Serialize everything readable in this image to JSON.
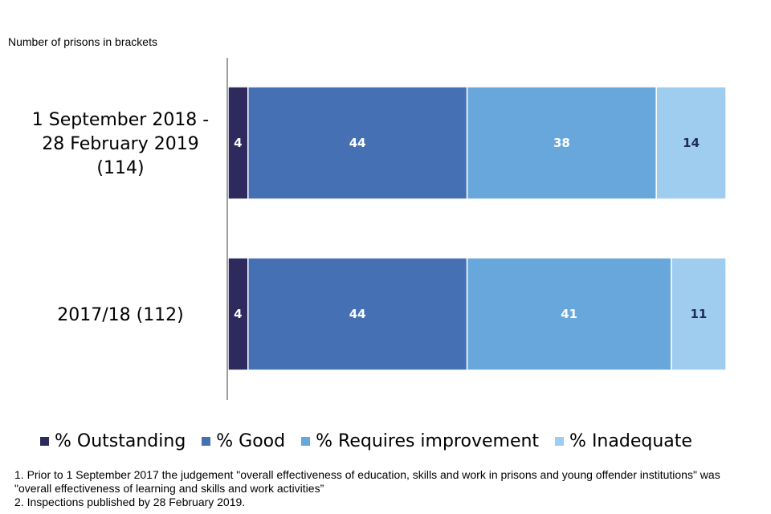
{
  "chart_data": {
    "type": "bar",
    "orientation": "horizontal",
    "stacked": true,
    "subtitle": "Number of prisons in brackets",
    "categories": [
      [
        "1 September 2018 -",
        "28 February 2019",
        "(114)"
      ],
      [
        "2017/18 (112)"
      ]
    ],
    "series": [
      {
        "name": "% Outstanding",
        "color": "#2e2a5e",
        "label_color": "#ffffff",
        "values": [
          4,
          4
        ]
      },
      {
        "name": "% Good",
        "color": "#4570b4",
        "label_color": "#ffffff",
        "values": [
          44,
          44
        ]
      },
      {
        "name": "% Requires improvement",
        "color": "#68a7dc",
        "label_color": "#ffffff",
        "values": [
          38,
          41
        ]
      },
      {
        "name": "% Inadequate",
        "color": "#9fcdf0",
        "label_color": "#1f2a5c",
        "values": [
          14,
          11
        ]
      }
    ],
    "xlim": [
      0,
      100
    ],
    "grid": false,
    "legend_position": "bottom"
  },
  "notes": [
    "1. Prior to 1 September 2017 the judgement \"overall effectiveness  of education, skills and work in prisons and young offender institutions\" was \"overall effectiveness of learning and skills and work activities”",
    "2. Inspections published by 28 February 2019."
  ]
}
